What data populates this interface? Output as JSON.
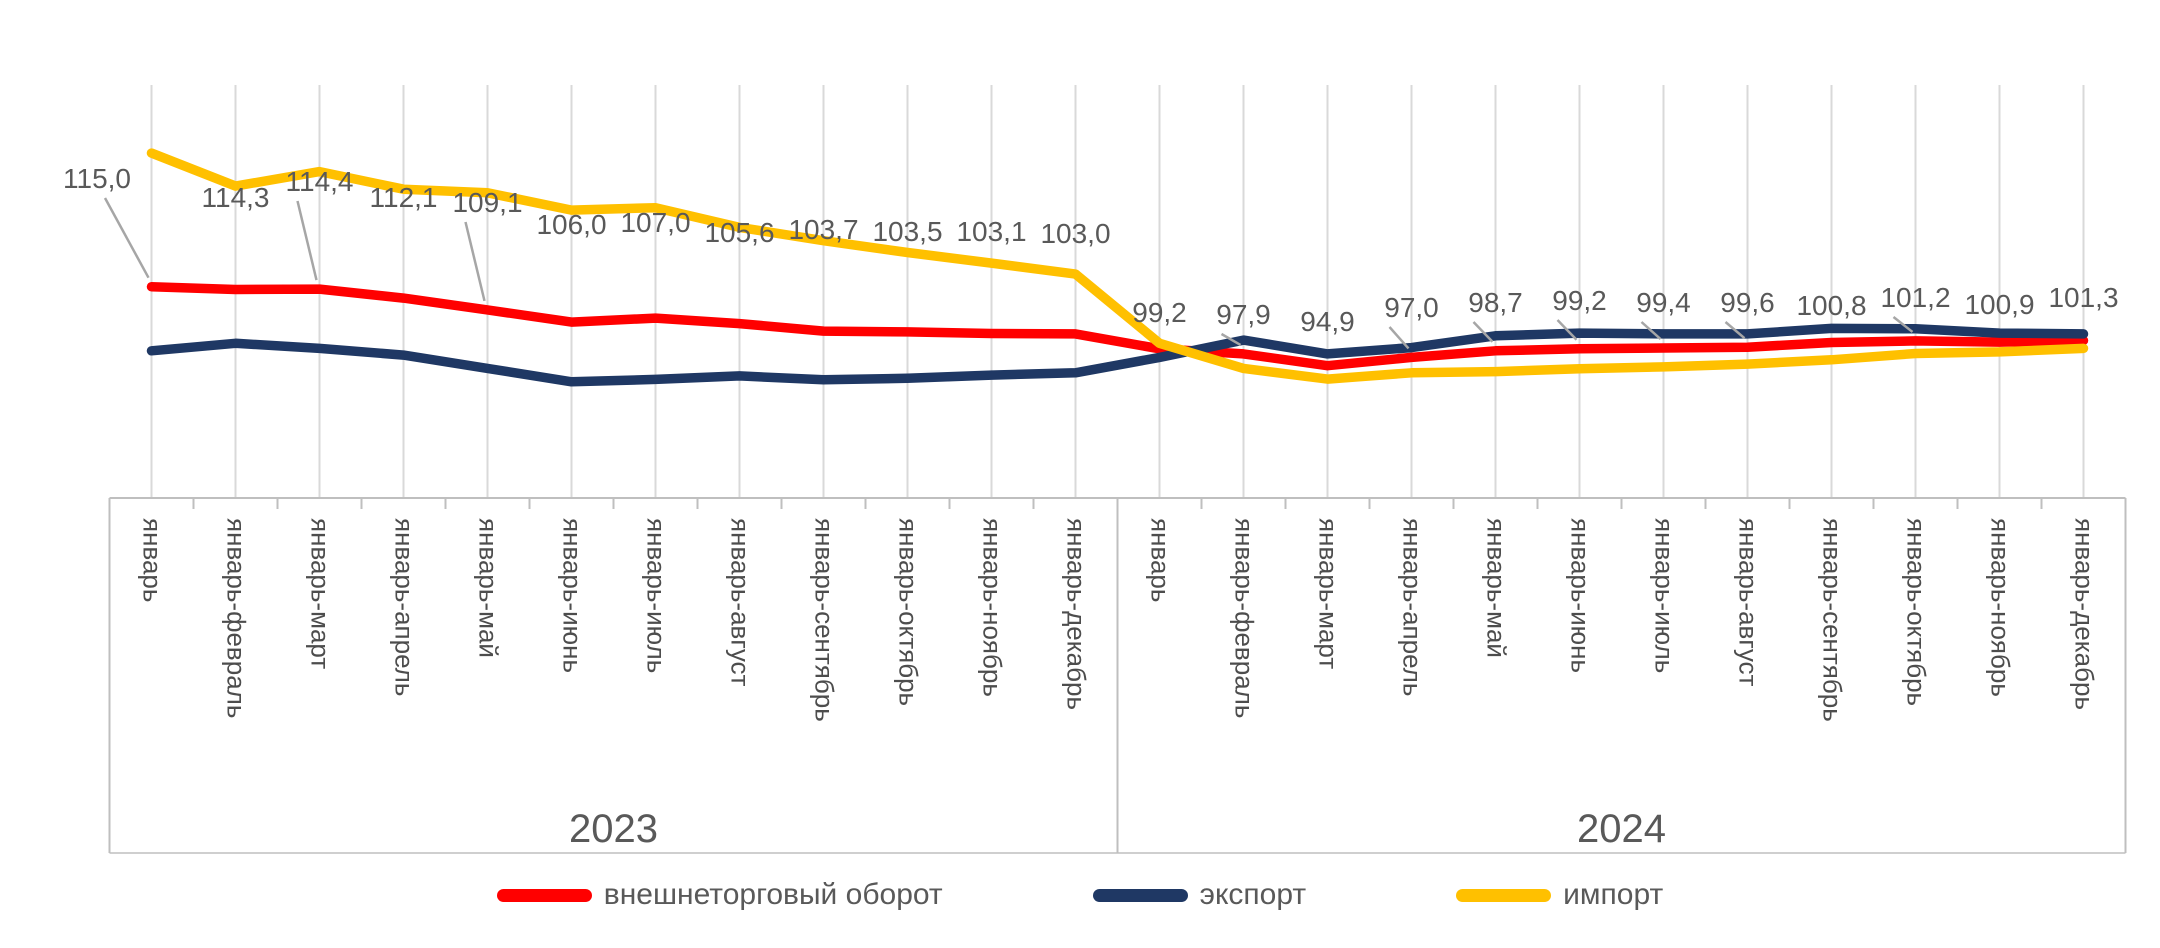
{
  "chart_data": {
    "type": "line",
    "title": "",
    "categories": [
      "январь",
      "январь-февраль",
      "январь-март",
      "январь-апрель",
      "январь-май",
      "январь-июнь",
      "январь-июль",
      "январь-август",
      "январь-сентябрь",
      "январь-октябрь",
      "январь-ноябрь",
      "январь-декабрь",
      "январь",
      "январь-февраль",
      "январь-март",
      "январь-апрель",
      "январь-май",
      "январь-июнь",
      "январь-июль",
      "январь-август",
      "январь-сентябрь",
      "январь-октябрь",
      "январь-ноябрь",
      "январь-декабрь"
    ],
    "year_groups": [
      {
        "label": "2023",
        "count": 12
      },
      {
        "label": "2024",
        "count": 12
      }
    ],
    "series": [
      {
        "name": "внешнеторговый оборот",
        "color": "#FF0000",
        "show_value_labels": true,
        "values": [
          115.0,
          114.3,
          114.4,
          112.1,
          109.1,
          106.0,
          107.0,
          105.6,
          103.7,
          103.5,
          103.1,
          103.0,
          99.2,
          97.9,
          94.9,
          97.0,
          98.7,
          99.2,
          99.4,
          99.6,
          100.8,
          101.2,
          100.9,
          101.3
        ]
      },
      {
        "name": "экспорт",
        "color": "#1F3864",
        "show_value_labels": false,
        "values": [
          98.7,
          100.6,
          99.3,
          97.6,
          94.2,
          90.8,
          91.4,
          92.3,
          91.3,
          91.7,
          92.5,
          93.1,
          97.0,
          101.4,
          97.9,
          99.5,
          102.5,
          103.2,
          103.0,
          103.0,
          104.4,
          104.3,
          103.2,
          103.0
        ]
      },
      {
        "name": "импорт",
        "color": "#FFC000",
        "show_value_labels": false,
        "values": [
          149.0,
          140.6,
          144.3,
          139.8,
          138.9,
          134.5,
          135.1,
          130.1,
          126.7,
          123.7,
          121.0,
          118.2,
          100.6,
          94.2,
          91.5,
          93.1,
          93.4,
          94.1,
          94.6,
          95.3,
          96.4,
          98.0,
          98.4,
          99.3
        ]
      }
    ],
    "value_label_format": "decimal-comma, 1 digit",
    "legend_position": "bottom",
    "grid": "vertical-category-lines",
    "colors": {
      "grid": "#D9D9D9",
      "frame": "#BFBFBF",
      "text": "#4d4d4d",
      "data_label": "#595959",
      "leader_line": "#A6A6A6"
    }
  }
}
